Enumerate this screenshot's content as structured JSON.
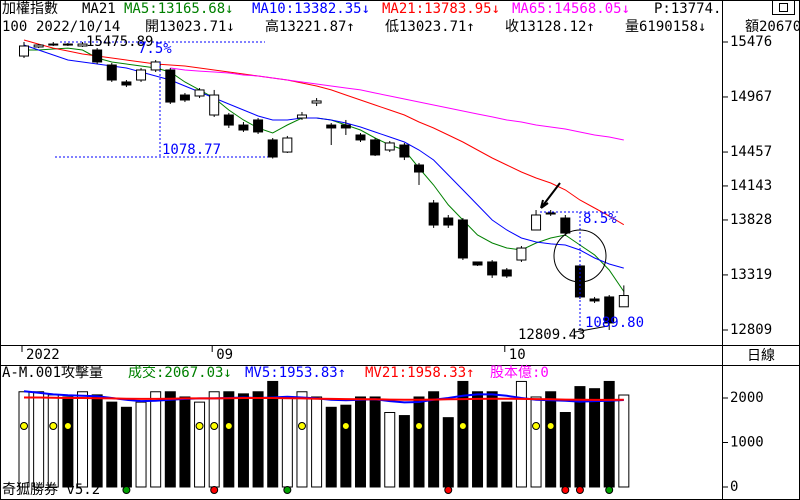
{
  "header": {
    "line1": [
      {
        "text": "加權指數",
        "color": "#000000"
      },
      {
        "text": "MA21",
        "color": "#000000"
      },
      {
        "text": "MA5:13165.68↓",
        "color": "#008000"
      },
      {
        "text": "MA10:13382.35↓",
        "color": "#0000ff"
      },
      {
        "text": "MA21:13783.95↓",
        "color": "#ff0000"
      },
      {
        "text": "MA65:14568.05↓",
        "color": "#ff00ff"
      },
      {
        "text": "P:13774.",
        "color": "#000000"
      }
    ],
    "line2": [
      {
        "text": "100",
        "color": "#000000"
      },
      {
        "text": "2022/10/14",
        "color": "#000000"
      },
      {
        "text": "開13023.71↓",
        "color": "#000000"
      },
      {
        "text": "高13221.87↑",
        "color": "#000000"
      },
      {
        "text": "低13023.71↑",
        "color": "#000000"
      },
      {
        "text": "收13128.12↑",
        "color": "#000000"
      },
      {
        "text": "量6190158↓",
        "color": "#000000"
      },
      {
        "text": "額20670",
        "color": "#000000"
      }
    ]
  },
  "chart_data": [
    {
      "type": "candlestick",
      "categories": [
        "2022",
        null,
        null,
        null,
        null,
        null,
        null,
        null,
        null,
        null,
        null,
        null,
        null,
        "09",
        null,
        null,
        null,
        null,
        null,
        null,
        null,
        null,
        null,
        null,
        null,
        null,
        null,
        null,
        null,
        null,
        null,
        null,
        null,
        "10",
        null,
        null,
        null,
        null,
        null,
        null,
        null,
        null
      ],
      "open": [
        15346,
        15430,
        15448,
        15457,
        15439,
        15402,
        15263,
        15106,
        15124,
        15217,
        15217,
        14985,
        14976,
        14800,
        14800,
        14707,
        14754,
        14569,
        14457,
        14772,
        14911,
        14707,
        14707,
        14615,
        14569,
        14476,
        14522,
        14337,
        13985,
        13846,
        13828,
        13439,
        13439,
        13365,
        13457,
        13735,
        13893,
        13846,
        13402,
        13096,
        13115,
        13023.71
      ],
      "close": [
        15439,
        15448,
        15457,
        15448,
        15457,
        15291,
        15124,
        15078,
        15217,
        15291,
        14920,
        14939,
        15032,
        14985,
        14707,
        14661,
        14643,
        14411,
        14587,
        14800,
        14930,
        14680,
        14680,
        14569,
        14430,
        14541,
        14411,
        14272,
        13781,
        13781,
        13476,
        13411,
        13319,
        13309,
        13568,
        13874,
        13883,
        13707,
        13115,
        13078,
        12874,
        13128.12
      ],
      "high": [
        15476,
        15457,
        15476,
        15467,
        15475.89,
        15420,
        15282,
        15124,
        15235,
        15309,
        15235,
        15004,
        15050,
        15032,
        14819,
        14735,
        14772,
        14587,
        14606,
        14828,
        14957,
        14726,
        14754,
        14633,
        14587,
        14559,
        14541,
        14356,
        14013,
        13874,
        13846,
        13439,
        13457,
        13383,
        13587,
        13920,
        13920,
        13874,
        13420,
        13115,
        13133,
        13221.87
      ],
      "low": [
        15328,
        15420,
        15439,
        15439,
        15430,
        15272,
        15106,
        15059,
        15106,
        15198,
        14902,
        14920,
        14957,
        14782,
        14680,
        14643,
        14624,
        14397.12,
        14448,
        14754,
        14883,
        14522,
        14615,
        14550,
        14420,
        14457,
        14383,
        14152,
        13754,
        13754,
        13457,
        13402,
        13291,
        13291,
        13439,
        13735,
        13865,
        13680,
        13096,
        13059,
        12809.43,
        13023.71
      ],
      "series": [
        {
          "name": "MA5",
          "color": "#008000",
          "values": [
            15402,
            15402,
            15411,
            15420,
            15402,
            15328,
            15291,
            15272,
            15254,
            15235,
            15198,
            15106,
            15032,
            14957,
            14846,
            14754,
            14680,
            14633,
            14707,
            14772,
            14772,
            14754,
            14707,
            14661,
            14587,
            14522,
            14476,
            14309,
            14152,
            13967,
            13828,
            13689,
            13615,
            13568,
            13550,
            13615,
            13661,
            13689,
            13596,
            13504,
            13365,
            13165.68
          ]
        },
        {
          "name": "MA10",
          "color": "#0000ff",
          "values": [
            15448,
            15402,
            15356,
            15309,
            15291,
            15272,
            15254,
            15235,
            15198,
            15161,
            15124,
            15069,
            15013,
            14957,
            14902,
            14846,
            14791,
            14754,
            14754,
            14772,
            14772,
            14754,
            14726,
            14689,
            14643,
            14596,
            14550,
            14476,
            14383,
            14244,
            14106,
            13967,
            13828,
            13735,
            13661,
            13624,
            13606,
            13596,
            13550,
            13476,
            13420,
            13382.35
          ]
        },
        {
          "name": "MA21",
          "color": "#ff0000",
          "values": [
            15495,
            15457,
            15420,
            15393,
            15365,
            15346,
            15328,
            15309,
            15291,
            15272,
            15263,
            15254,
            15235,
            15217,
            15198,
            15180,
            15161,
            15143,
            15124,
            15096,
            15069,
            15032,
            14985,
            14939,
            14893,
            14846,
            14800,
            14735,
            14680,
            14615,
            14550,
            14476,
            14402,
            14337,
            14272,
            14217,
            14170,
            14106,
            14013,
            13939,
            13865,
            13783.95
          ]
        },
        {
          "name": "MA65",
          "color": "#ff00ff",
          "values": [
            null,
            null,
            null,
            null,
            null,
            null,
            null,
            null,
            null,
            null,
            15235,
            15217,
            15207,
            15198,
            15189,
            15170,
            15161,
            15143,
            15124,
            15106,
            15087,
            15069,
            15050,
            15032,
            15004,
            14976,
            14948,
            14920,
            14893,
            14865,
            14837,
            14809,
            14782,
            14754,
            14735,
            14707,
            14689,
            14670,
            14643,
            14615,
            14596,
            14568.05
          ]
        }
      ],
      "ylim": [
        12670,
        15865
      ],
      "yticks": [
        15476,
        14967,
        14457,
        14143,
        13828,
        13319,
        12809
      ],
      "annotations": [
        "15475.89",
        "7.5%",
        "1078.77",
        "8.5%",
        "1089.80",
        "12809.43"
      ]
    },
    {
      "type": "bar",
      "title": [
        {
          "text": "A-M.001攻擊量",
          "color": "#000000"
        },
        {
          "text": "成交:2067.03↓",
          "color": "#008000"
        },
        {
          "text": "MV5:1953.83↑",
          "color": "#0000ff"
        },
        {
          "text": "MV21:1958.33↑",
          "color": "#ff0000"
        },
        {
          "text": "股本億:0",
          "color": "#ff00ff"
        }
      ],
      "values": [
        2140,
        2140,
        2070,
        2023,
        2140,
        2070,
        1907,
        1791,
        1907,
        2140,
        2140,
        2023,
        1907,
        2140,
        2140,
        2093,
        2140,
        2372,
        2023,
        2140,
        2023,
        1791,
        1838,
        2023,
        2023,
        1674,
        1605,
        2023,
        2140,
        1558,
        2372,
        2140,
        2140,
        1907,
        2372,
        2023,
        2140,
        1674,
        2256,
        2209,
        2372,
        2067.03
      ],
      "series": [
        {
          "name": "MV5",
          "color": "#0000ff",
          "values": [
            2150,
            2120,
            2080,
            2060,
            2050,
            2040,
            2000,
            1960,
            1930,
            1940,
            1960,
            1980,
            1990,
            1990,
            2000,
            2010,
            2000,
            2010,
            2030,
            2010,
            1990,
            1960,
            1950,
            1960,
            1970,
            1930,
            1900,
            1910,
            1960,
            2000,
            2050,
            2080,
            2080,
            2050,
            2000,
            1960,
            1950,
            1940,
            1920,
            1930,
            1940,
            1953.83
          ]
        },
        {
          "name": "MV21",
          "color": "#ff0000",
          "values": [
            2010,
            2010,
            2005,
            2000,
            2000,
            1995,
            1990,
            1985,
            1980,
            1980,
            1985,
            1990,
            1990,
            1990,
            1995,
            2000,
            2000,
            2000,
            1995,
            1990,
            1985,
            1980,
            1975,
            1970,
            1970,
            1965,
            1960,
            1960,
            1965,
            1970,
            1975,
            1980,
            1985,
            1985,
            1980,
            1975,
            1970,
            1965,
            1960,
            1958,
            1957,
            1958.33
          ]
        }
      ],
      "ylim": [
        -225,
        2719
      ],
      "yticks": [
        0,
        1000,
        2000
      ]
    }
  ],
  "ui": {
    "period": "日線",
    "footer": "奇狐勝券 v5.2"
  }
}
